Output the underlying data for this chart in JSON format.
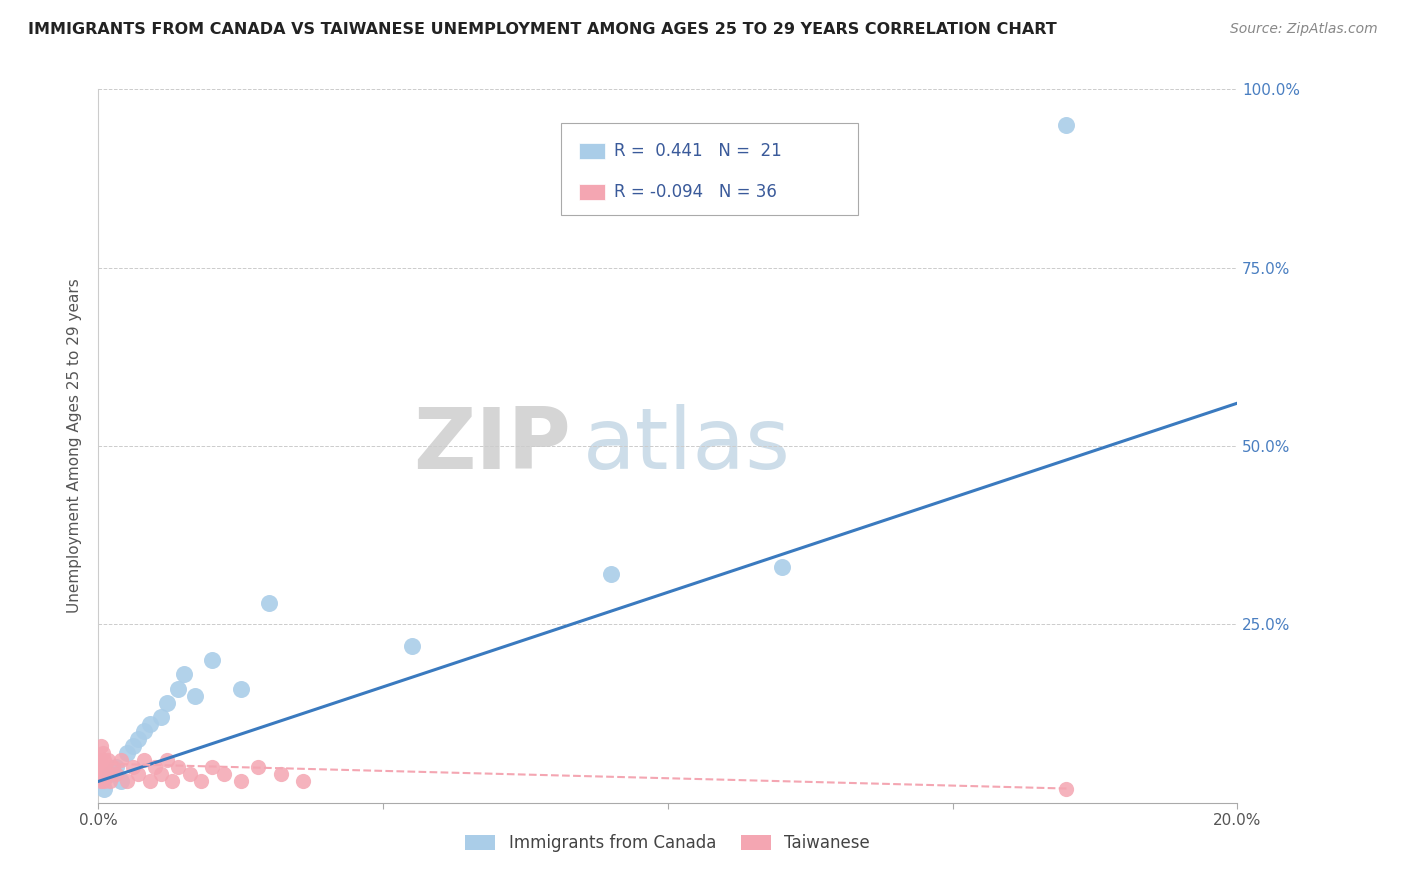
{
  "title": "IMMIGRANTS FROM CANADA VS TAIWANESE UNEMPLOYMENT AMONG AGES 25 TO 29 YEARS CORRELATION CHART",
  "source": "Source: ZipAtlas.com",
  "ylabel": "Unemployment Among Ages 25 to 29 years",
  "xlim": [
    0.0,
    0.2
  ],
  "ylim": [
    0.0,
    1.0
  ],
  "xticks": [
    0.0,
    0.05,
    0.1,
    0.15,
    0.2
  ],
  "xticklabels": [
    "0.0%",
    "",
    "",
    "",
    "20.0%"
  ],
  "yticks": [
    0.0,
    0.25,
    0.5,
    0.75,
    1.0
  ],
  "yticklabels": [
    "",
    "25.0%",
    "50.0%",
    "75.0%",
    "100.0%"
  ],
  "blue_scatter_x": [
    0.001,
    0.002,
    0.003,
    0.004,
    0.005,
    0.006,
    0.007,
    0.008,
    0.009,
    0.011,
    0.012,
    0.014,
    0.015,
    0.017,
    0.02,
    0.025,
    0.03,
    0.055,
    0.09,
    0.12,
    0.17
  ],
  "blue_scatter_y": [
    0.02,
    0.04,
    0.05,
    0.03,
    0.07,
    0.08,
    0.09,
    0.1,
    0.11,
    0.12,
    0.14,
    0.16,
    0.18,
    0.15,
    0.2,
    0.16,
    0.28,
    0.22,
    0.32,
    0.33,
    0.95
  ],
  "pink_scatter_x": [
    0.0001,
    0.0002,
    0.0003,
    0.0004,
    0.0005,
    0.0006,
    0.0007,
    0.0008,
    0.0009,
    0.001,
    0.0012,
    0.0014,
    0.0016,
    0.002,
    0.0025,
    0.003,
    0.004,
    0.005,
    0.006,
    0.007,
    0.008,
    0.009,
    0.01,
    0.011,
    0.012,
    0.013,
    0.014,
    0.016,
    0.018,
    0.02,
    0.022,
    0.025,
    0.028,
    0.032,
    0.036,
    0.17
  ],
  "pink_scatter_y": [
    0.05,
    0.04,
    0.06,
    0.03,
    0.08,
    0.05,
    0.04,
    0.07,
    0.03,
    0.06,
    0.05,
    0.04,
    0.06,
    0.03,
    0.05,
    0.04,
    0.06,
    0.03,
    0.05,
    0.04,
    0.06,
    0.03,
    0.05,
    0.04,
    0.06,
    0.03,
    0.05,
    0.04,
    0.03,
    0.05,
    0.04,
    0.03,
    0.05,
    0.04,
    0.03,
    0.02
  ],
  "blue_line_x": [
    0.0,
    0.2
  ],
  "blue_line_y": [
    0.03,
    0.56
  ],
  "pink_line_x": [
    0.0,
    0.17
  ],
  "pink_line_y": [
    0.055,
    0.02
  ],
  "blue_color": "#aacde8",
  "pink_color": "#f4a6b2",
  "blue_line_color": "#3a7abf",
  "pink_line_color": "#f4a6b2",
  "R_blue": "0.441",
  "N_blue": "21",
  "R_pink": "-0.094",
  "N_pink": "36",
  "watermark_zip": "ZIP",
  "watermark_atlas": "atlas",
  "legend_label_blue": "Immigrants from Canada",
  "legend_label_pink": "Taiwanese",
  "background_color": "#ffffff",
  "grid_color": "#cccccc"
}
